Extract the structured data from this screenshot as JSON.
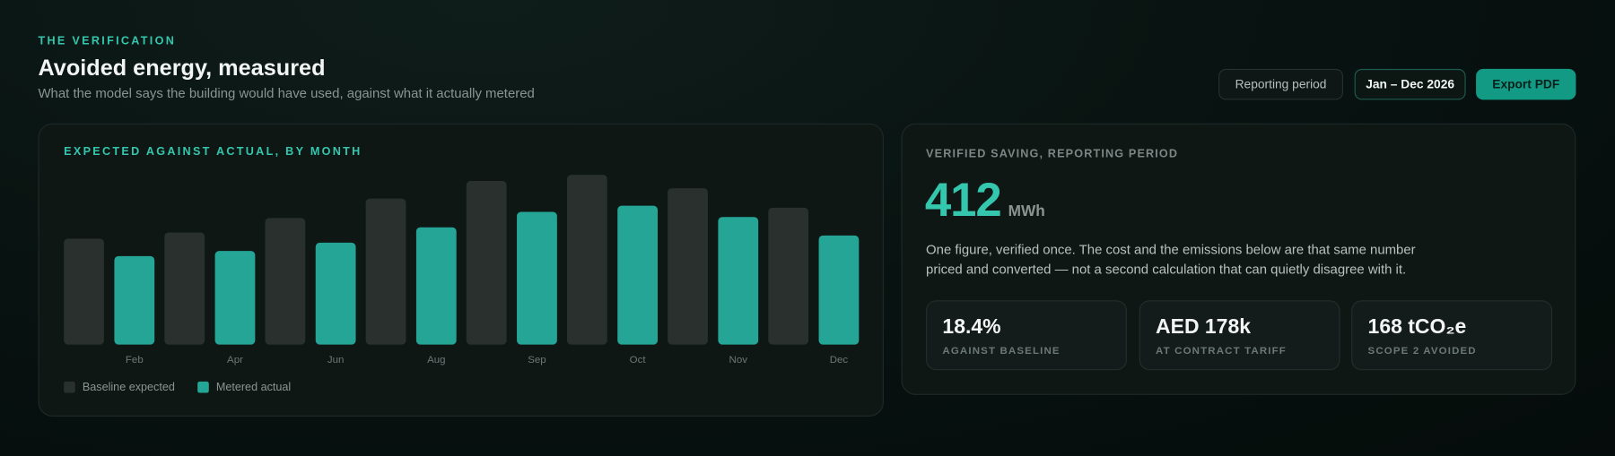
{
  "header": {
    "eyebrow": "THE VERIFICATION",
    "title": "Avoided energy, measured",
    "subtitle": "What the model says the building would have used, against what it actually metered"
  },
  "controls": {
    "label": "Reporting period",
    "period": "Jan – Dec 2026",
    "export": "Export PDF"
  },
  "chart_data": {
    "type": "bar",
    "title": "EXPECTED AGAINST ACTUAL, BY MONTH",
    "categories": [
      "Feb",
      "Apr",
      "Jun",
      "Aug",
      "Sep",
      "Oct",
      "Nov",
      "Dec"
    ],
    "series": [
      {
        "name": "Baseline expected",
        "color": "#29302e",
        "values": [
          103,
          109,
          123,
          142,
          159,
          165,
          152,
          133
        ]
      },
      {
        "name": "Metered actual",
        "color": "#25a596",
        "values": [
          86,
          91,
          99,
          114,
          129,
          135,
          124,
          106
        ]
      }
    ],
    "grid": false,
    "legend": "bottom-left"
  },
  "summary": {
    "eyebrow": "VERIFIED SAVING, REPORTING PERIOD",
    "value": "412",
    "unit": "MWh",
    "text": "One figure, verified once. The cost and the emissions below are that same number priced and converted — not a second calculation that can quietly disagree with it.",
    "tiles": [
      {
        "value": "18.4%",
        "label": "AGAINST BASELINE"
      },
      {
        "value": "AED 178k",
        "label": "AT CONTRACT TARIFF"
      },
      {
        "value": "168 tCO₂e",
        "label": "SCOPE 2 AVOIDED"
      }
    ]
  }
}
